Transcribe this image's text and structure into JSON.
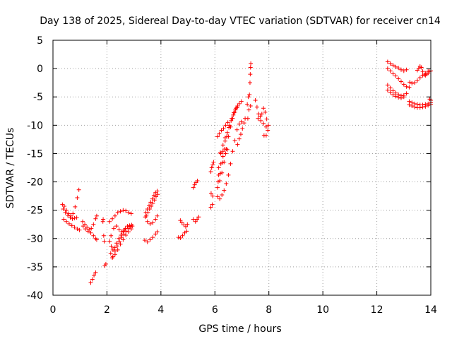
{
  "chart_data": {
    "type": "scatter",
    "title": "Day 138 of 2025, Sidereal Day-to-day VTEC variation (SDTVAR) for receiver cn14",
    "xlabel": "GPS time / hours",
    "ylabel": "SDTVAR / TECUs",
    "xlim": [
      0,
      14
    ],
    "ylim": [
      -40,
      5
    ],
    "xticks": [
      "0",
      "2",
      "4",
      "6",
      "8",
      "10",
      "12",
      "14"
    ],
    "yticks": [
      "5",
      "0",
      "-5",
      "-10",
      "-15",
      "-20",
      "-25",
      "-30",
      "-35",
      "-40"
    ],
    "grid": true,
    "marker": "+",
    "color": "#ff0000",
    "series": [
      {
        "name": "SDTVAR",
        "points": [
          [
            0.35,
            -24.0
          ],
          [
            0.42,
            -24.3
          ],
          [
            0.5,
            -25.0
          ],
          [
            0.58,
            -25.6
          ],
          [
            0.66,
            -26.0
          ],
          [
            0.74,
            -25.6
          ],
          [
            0.82,
            -24.4
          ],
          [
            0.9,
            -22.8
          ],
          [
            0.96,
            -21.4
          ],
          [
            0.38,
            -24.8
          ],
          [
            0.46,
            -25.4
          ],
          [
            0.55,
            -25.9
          ],
          [
            0.64,
            -26.3
          ],
          [
            0.72,
            -26.5
          ],
          [
            0.8,
            -26.4
          ],
          [
            0.88,
            -26.3
          ],
          [
            0.4,
            -26.6
          ],
          [
            0.5,
            -27.0
          ],
          [
            0.6,
            -27.4
          ],
          [
            0.7,
            -27.7
          ],
          [
            0.8,
            -28.0
          ],
          [
            0.9,
            -28.3
          ],
          [
            0.98,
            -28.5
          ],
          [
            1.1,
            -27.0
          ],
          [
            1.18,
            -27.5
          ],
          [
            1.26,
            -28.0
          ],
          [
            1.34,
            -28.4
          ],
          [
            1.42,
            -28.2
          ],
          [
            1.5,
            -27.5
          ],
          [
            1.58,
            -26.5
          ],
          [
            1.62,
            -26.0
          ],
          [
            1.12,
            -27.8
          ],
          [
            1.2,
            -28.3
          ],
          [
            1.3,
            -28.7
          ],
          [
            1.4,
            -29.0
          ],
          [
            1.5,
            -29.5
          ],
          [
            1.58,
            -30.0
          ],
          [
            1.62,
            -30.2
          ],
          [
            1.4,
            -37.8
          ],
          [
            1.46,
            -37.2
          ],
          [
            1.52,
            -36.5
          ],
          [
            1.58,
            -36.0
          ],
          [
            1.85,
            -27.0
          ],
          [
            1.88,
            -29.5
          ],
          [
            1.9,
            -30.5
          ],
          [
            1.92,
            -34.8
          ],
          [
            1.96,
            -34.5
          ],
          [
            1.86,
            -26.6
          ],
          [
            2.1,
            -27.0
          ],
          [
            2.2,
            -26.5
          ],
          [
            2.3,
            -26.0
          ],
          [
            2.4,
            -25.4
          ],
          [
            2.5,
            -25.2
          ],
          [
            2.6,
            -25.0
          ],
          [
            2.7,
            -25.1
          ],
          [
            2.8,
            -25.4
          ],
          [
            2.9,
            -25.6
          ],
          [
            2.15,
            -29.5
          ],
          [
            2.25,
            -28.2
          ],
          [
            2.35,
            -27.8
          ],
          [
            2.45,
            -28.4
          ],
          [
            2.55,
            -28.8
          ],
          [
            2.65,
            -28.5
          ],
          [
            2.1,
            -30.5
          ],
          [
            2.16,
            -31.4
          ],
          [
            2.22,
            -32.0
          ],
          [
            2.28,
            -31.6
          ],
          [
            2.36,
            -30.8
          ],
          [
            2.44,
            -30.0
          ],
          [
            2.52,
            -29.4
          ],
          [
            2.6,
            -28.7
          ],
          [
            2.68,
            -28.2
          ],
          [
            2.76,
            -27.8
          ],
          [
            2.84,
            -27.7
          ],
          [
            2.92,
            -27.6
          ],
          [
            2.14,
            -32.6
          ],
          [
            2.22,
            -33.2
          ],
          [
            2.3,
            -32.2
          ],
          [
            2.38,
            -31.3
          ],
          [
            2.46,
            -30.5
          ],
          [
            2.54,
            -29.8
          ],
          [
            2.62,
            -29.2
          ],
          [
            2.7,
            -28.7
          ],
          [
            2.78,
            -28.2
          ],
          [
            2.86,
            -27.9
          ],
          [
            2.94,
            -27.8
          ],
          [
            2.2,
            -33.4
          ],
          [
            2.3,
            -32.8
          ],
          [
            2.4,
            -32.0
          ],
          [
            2.5,
            -31.0
          ],
          [
            2.6,
            -30.2
          ],
          [
            2.7,
            -29.4
          ],
          [
            2.8,
            -28.8
          ],
          [
            2.9,
            -28.3
          ],
          [
            3.4,
            -30.3
          ],
          [
            3.5,
            -30.6
          ],
          [
            3.6,
            -30.2
          ],
          [
            3.7,
            -29.8
          ],
          [
            3.8,
            -29.2
          ],
          [
            3.86,
            -28.8
          ],
          [
            3.42,
            -26.2
          ],
          [
            3.5,
            -27.0
          ],
          [
            3.6,
            -27.4
          ],
          [
            3.7,
            -27.2
          ],
          [
            3.8,
            -26.6
          ],
          [
            3.86,
            -26.0
          ],
          [
            3.44,
            -25.4
          ],
          [
            3.5,
            -24.8
          ],
          [
            3.56,
            -24.2
          ],
          [
            3.62,
            -23.6
          ],
          [
            3.68,
            -23.0
          ],
          [
            3.74,
            -22.4
          ],
          [
            3.8,
            -21.9
          ],
          [
            3.86,
            -21.6
          ],
          [
            3.46,
            -26.0
          ],
          [
            3.52,
            -25.4
          ],
          [
            3.58,
            -24.8
          ],
          [
            3.64,
            -24.3
          ],
          [
            3.7,
            -23.8
          ],
          [
            3.76,
            -23.2
          ],
          [
            3.82,
            -22.6
          ],
          [
            3.88,
            -22.2
          ],
          [
            4.65,
            -29.8
          ],
          [
            4.72,
            -29.9
          ],
          [
            4.8,
            -29.5
          ],
          [
            4.88,
            -29.0
          ],
          [
            4.95,
            -28.7
          ],
          [
            4.72,
            -26.8
          ],
          [
            4.78,
            -27.2
          ],
          [
            4.85,
            -27.6
          ],
          [
            4.92,
            -27.9
          ],
          [
            4.98,
            -27.5
          ],
          [
            5.2,
            -21.0
          ],
          [
            5.25,
            -20.5
          ],
          [
            5.3,
            -20.1
          ],
          [
            5.35,
            -19.8
          ],
          [
            5.2,
            -26.6
          ],
          [
            5.28,
            -27.0
          ],
          [
            5.34,
            -26.6
          ],
          [
            5.4,
            -26.2
          ],
          [
            5.85,
            -18.2
          ],
          [
            5.88,
            -17.5
          ],
          [
            5.92,
            -17.0
          ],
          [
            5.95,
            -16.5
          ],
          [
            5.86,
            -22.0
          ],
          [
            5.92,
            -22.5
          ],
          [
            5.85,
            -24.5
          ],
          [
            5.9,
            -24.0
          ],
          [
            6.1,
            -22.6
          ],
          [
            6.18,
            -23.0
          ],
          [
            6.26,
            -22.3
          ],
          [
            6.34,
            -21.5
          ],
          [
            6.42,
            -20.3
          ],
          [
            6.5,
            -18.8
          ],
          [
            6.58,
            -16.8
          ],
          [
            6.66,
            -14.6
          ],
          [
            6.74,
            -12.7
          ],
          [
            6.82,
            -10.8
          ],
          [
            6.9,
            -9.8
          ],
          [
            6.98,
            -9.4
          ],
          [
            6.1,
            -21.0
          ],
          [
            6.18,
            -19.8
          ],
          [
            6.26,
            -18.4
          ],
          [
            6.34,
            -16.5
          ],
          [
            6.42,
            -14.2
          ],
          [
            6.5,
            -12.0
          ],
          [
            6.58,
            -10.3
          ],
          [
            6.66,
            -8.8
          ],
          [
            6.74,
            -7.7
          ],
          [
            6.82,
            -6.9
          ],
          [
            6.9,
            -6.2
          ],
          [
            6.98,
            -5.8
          ],
          [
            6.12,
            -20.0
          ],
          [
            6.2,
            -18.5
          ],
          [
            6.28,
            -16.6
          ],
          [
            6.36,
            -14.2
          ],
          [
            6.44,
            -12.0
          ],
          [
            6.52,
            -10.4
          ],
          [
            6.6,
            -9.2
          ],
          [
            6.68,
            -8.2
          ],
          [
            6.76,
            -7.3
          ],
          [
            6.84,
            -6.6
          ],
          [
            6.14,
            -18.8
          ],
          [
            6.22,
            -16.8
          ],
          [
            6.3,
            -14.6
          ],
          [
            6.38,
            -12.8
          ],
          [
            6.46,
            -11.3
          ],
          [
            6.54,
            -10.0
          ],
          [
            6.62,
            -8.8
          ],
          [
            6.7,
            -7.8
          ],
          [
            6.78,
            -7.0
          ],
          [
            6.14,
            -17.5
          ],
          [
            6.22,
            -15.0
          ],
          [
            6.3,
            -13.5
          ],
          [
            6.38,
            -12.2
          ],
          [
            6.1,
            -12.0
          ],
          [
            6.16,
            -11.5
          ],
          [
            6.24,
            -10.9
          ],
          [
            6.32,
            -10.6
          ],
          [
            6.4,
            -10.0
          ],
          [
            6.48,
            -9.5
          ],
          [
            6.2,
            -14.8
          ],
          [
            6.3,
            -15.5
          ],
          [
            6.4,
            -15.0
          ],
          [
            6.46,
            -14.3
          ],
          [
            6.84,
            -13.4
          ],
          [
            6.9,
            -12.4
          ],
          [
            6.96,
            -11.6
          ],
          [
            7.02,
            -10.6
          ],
          [
            7.08,
            -9.6
          ],
          [
            7.12,
            -8.8
          ],
          [
            7.2,
            -6.3
          ],
          [
            7.24,
            -5.0
          ],
          [
            7.28,
            -4.6
          ],
          [
            7.3,
            -2.5
          ],
          [
            7.31,
            -1.0
          ],
          [
            7.32,
            0.2
          ],
          [
            7.33,
            0.9
          ],
          [
            7.26,
            -7.3
          ],
          [
            7.22,
            -8.8
          ],
          [
            7.32,
            -6.6
          ],
          [
            7.5,
            -5.6
          ],
          [
            7.56,
            -6.8
          ],
          [
            7.62,
            -8.0
          ],
          [
            7.68,
            -8.4
          ],
          [
            7.74,
            -8.0
          ],
          [
            7.8,
            -7.0
          ],
          [
            7.86,
            -7.7
          ],
          [
            7.92,
            -8.9
          ],
          [
            7.98,
            -10.0
          ],
          [
            7.6,
            -8.8
          ],
          [
            7.7,
            -9.2
          ],
          [
            7.8,
            -9.7
          ],
          [
            7.9,
            -10.3
          ],
          [
            7.96,
            -10.9
          ],
          [
            7.82,
            -11.8
          ],
          [
            7.9,
            -11.8
          ],
          [
            12.4,
            1.2
          ],
          [
            12.5,
            0.9
          ],
          [
            12.6,
            0.6
          ],
          [
            12.7,
            0.3
          ],
          [
            12.8,
            0.1
          ],
          [
            12.9,
            -0.2
          ],
          [
            13.0,
            -0.4
          ],
          [
            13.1,
            -0.2
          ],
          [
            12.4,
            0.0
          ],
          [
            12.5,
            -0.4
          ],
          [
            12.6,
            -0.9
          ],
          [
            12.7,
            -1.3
          ],
          [
            12.8,
            -1.8
          ],
          [
            12.9,
            -2.3
          ],
          [
            13.0,
            -2.8
          ],
          [
            13.1,
            -3.2
          ],
          [
            13.2,
            -3.3
          ],
          [
            12.4,
            -2.9
          ],
          [
            12.5,
            -3.4
          ],
          [
            12.6,
            -3.9
          ],
          [
            12.7,
            -4.3
          ],
          [
            12.8,
            -4.6
          ],
          [
            12.9,
            -4.8
          ],
          [
            13.0,
            -4.7
          ],
          [
            13.1,
            -4.4
          ],
          [
            12.4,
            -3.8
          ],
          [
            12.5,
            -4.2
          ],
          [
            12.6,
            -4.6
          ],
          [
            12.7,
            -4.9
          ],
          [
            12.8,
            -5.1
          ],
          [
            12.9,
            -5.2
          ],
          [
            13.0,
            -5.0
          ],
          [
            13.2,
            -5.8
          ],
          [
            13.3,
            -6.0
          ],
          [
            13.4,
            -6.2
          ],
          [
            13.5,
            -6.3
          ],
          [
            13.6,
            -6.4
          ],
          [
            13.7,
            -6.4
          ],
          [
            13.8,
            -6.3
          ],
          [
            13.9,
            -6.2
          ],
          [
            14.0,
            -6.0
          ],
          [
            13.2,
            -6.4
          ],
          [
            13.3,
            -6.6
          ],
          [
            13.4,
            -6.8
          ],
          [
            13.5,
            -6.9
          ],
          [
            13.6,
            -6.9
          ],
          [
            13.7,
            -6.8
          ],
          [
            13.8,
            -6.7
          ],
          [
            13.9,
            -6.5
          ],
          [
            14.0,
            -6.3
          ],
          [
            13.22,
            -2.4
          ],
          [
            13.3,
            -2.6
          ],
          [
            13.4,
            -2.5
          ],
          [
            13.5,
            -2.1
          ],
          [
            13.6,
            -1.6
          ],
          [
            13.7,
            -1.2
          ],
          [
            13.8,
            -0.8
          ],
          [
            13.9,
            -0.5
          ],
          [
            14.0,
            -0.4
          ],
          [
            13.5,
            -0.3
          ],
          [
            13.55,
            0.0
          ],
          [
            13.6,
            0.4
          ],
          [
            13.65,
            0.2
          ],
          [
            13.7,
            -0.5
          ],
          [
            13.75,
            -1.1
          ],
          [
            13.8,
            -1.2
          ],
          [
            13.85,
            -1.0
          ],
          [
            13.9,
            -0.8
          ],
          [
            13.95,
            -0.5
          ],
          [
            13.96,
            -5.4
          ],
          [
            14.0,
            -5.6
          ]
        ]
      }
    ]
  }
}
